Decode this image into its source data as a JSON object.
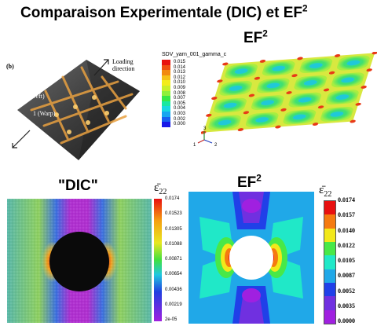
{
  "slide": {
    "title_main": "Comparaison Experimentale (DIC) et EF",
    "title_sup": "2"
  },
  "photo": {
    "tag": "(b)",
    "loading_label_line1": "Loading",
    "loading_label_line2": "direction",
    "weft_label": "2 (Weft)",
    "warp_label": "1 (Warp)"
  },
  "ef_top": {
    "heading_main": "EF",
    "heading_sup": "2",
    "legend_title": "SDV_yarn_001_gamma_c",
    "legend_values": [
      "0.015",
      "0.014",
      "0.013",
      "0.012",
      "0.010",
      "0.009",
      "0.008",
      "0.007",
      "0.005",
      "0.004",
      "0.003",
      "0.002",
      "0.000"
    ],
    "legend_colors": [
      "#e8120e",
      "#ef5010",
      "#f28a10",
      "#f5c218",
      "#f2ec1c",
      "#c8f02a",
      "#8ef03a",
      "#36e846",
      "#18e8a0",
      "#18d8e0",
      "#18a6f0",
      "#1860f0",
      "#1818e8"
    ],
    "axes": {
      "x": "1",
      "y": "3",
      "z": "2"
    }
  },
  "dic": {
    "heading": "\"DIC\"",
    "symbol": "ε̄",
    "symbol_sub": "22",
    "ticks": [
      "0.0174",
      "0.01523",
      "0.01305",
      "0.01088",
      "0.00871",
      "0.00654",
      "0.00436",
      "0.00219",
      "2e-05"
    ]
  },
  "ef_bottom": {
    "heading_main": "EF",
    "heading_sup": "2",
    "symbol": "ε̄",
    "symbol_sub": "22",
    "ticks": [
      "0.0174",
      "0.0157",
      "0.0140",
      "0.0122",
      "0.0105",
      "0.0087",
      "0.0052",
      "0.0035",
      "0.0000"
    ],
    "band_colors": [
      "#e81010",
      "#f57a10",
      "#f2e81a",
      "#48e848",
      "#20e8c8",
      "#20a8e8",
      "#2040e8",
      "#7030e0",
      "#a020e0"
    ]
  }
}
